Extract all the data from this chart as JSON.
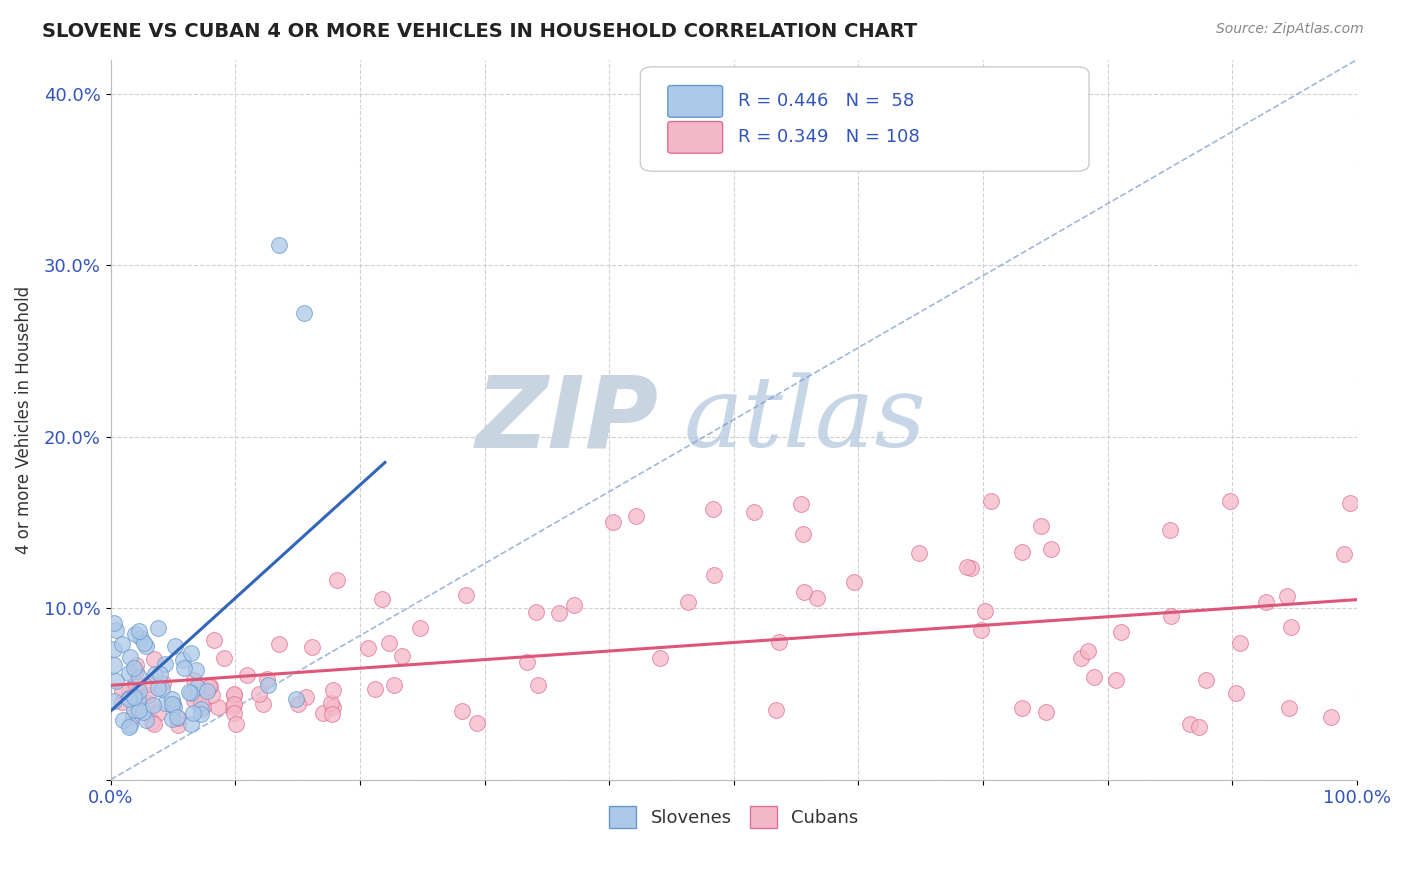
{
  "title": "SLOVENE VS CUBAN 4 OR MORE VEHICLES IN HOUSEHOLD CORRELATION CHART",
  "source_text": "Source: ZipAtlas.com",
  "ylabel": "4 or more Vehicles in Household",
  "xlim": [
    0.0,
    1.0
  ],
  "ylim": [
    0.0,
    0.42
  ],
  "xticks": [
    0.0,
    0.1,
    0.2,
    0.3,
    0.4,
    0.5,
    0.6,
    0.7,
    0.8,
    0.9,
    1.0
  ],
  "xtick_labels": [
    "0.0%",
    "",
    "",
    "",
    "",
    "",
    "",
    "",
    "",
    "",
    "100.0%"
  ],
  "yticks": [
    0.0,
    0.1,
    0.2,
    0.3,
    0.4
  ],
  "ytick_labels": [
    "",
    "10.0%",
    "20.0%",
    "30.0%",
    "40.0%"
  ],
  "slovene_R": 0.446,
  "slovene_N": 58,
  "cuban_R": 0.349,
  "cuban_N": 108,
  "slovene_color": "#adc8e8",
  "cuban_color": "#f5b8ca",
  "slovene_edge_color": "#6699cc",
  "cuban_edge_color": "#e07090",
  "slovene_line_color": "#3366bb",
  "cuban_line_color": "#dd5577",
  "background_color": "#ffffff",
  "grid_color": "#cccccc",
  "diagonal_color": "#7799cc",
  "title_color": "#222222",
  "tick_color": "#3355bb",
  "watermark_ZIP_color": "#c8d4e0",
  "watermark_atlas_color": "#b8cce0",
  "slovene_label": "Slovenes",
  "cuban_label": "Cubans",
  "slovene_line_x0": 0.0,
  "slovene_line_x1": 0.22,
  "slovene_line_y0": 0.04,
  "slovene_line_y1": 0.185,
  "cuban_line_x0": 0.0,
  "cuban_line_x1": 1.0,
  "cuban_line_y0": 0.055,
  "cuban_line_y1": 0.105
}
